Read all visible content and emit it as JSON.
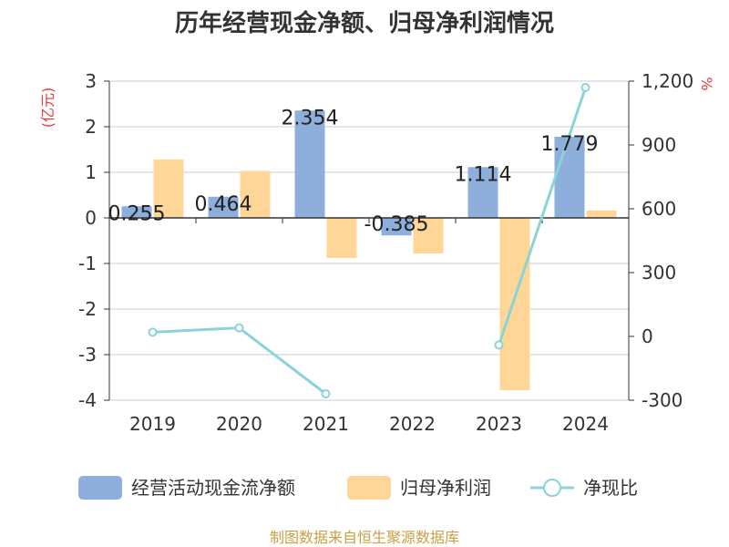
{
  "chart_data": {
    "type": "bar",
    "title": "历年经营现金净额、归母净利润情况",
    "categories": [
      "2019",
      "2020",
      "2021",
      "2022",
      "2023",
      "2024"
    ],
    "left_axis": {
      "label": "(亿元)",
      "ticks": [
        "3",
        "2",
        "1",
        "0",
        "-1",
        "-2",
        "-3",
        "-4"
      ],
      "ylim": [
        -4,
        3
      ]
    },
    "right_axis": {
      "label": "%",
      "ticks": [
        "1,200",
        "900",
        "600",
        "300",
        "0",
        "-300"
      ],
      "ylim": [
        -300,
        1200
      ]
    },
    "series": [
      {
        "name": "经营活动现金流净额",
        "type": "bar",
        "axis": "left",
        "color": "#8eaedc",
        "values": [
          0.255,
          0.464,
          2.354,
          -0.385,
          1.114,
          1.779
        ],
        "labels": [
          "0.255",
          "0.464",
          "2.354",
          "-0.385",
          "1.114",
          "1.779"
        ]
      },
      {
        "name": "归母净利润",
        "type": "bar",
        "axis": "left",
        "color": "#fdd698",
        "values": [
          1.28,
          1.03,
          -0.88,
          -0.78,
          -3.78,
          0.16
        ]
      },
      {
        "name": "净现比",
        "type": "line",
        "axis": "right",
        "color": "#8ad3d6",
        "values": [
          20,
          40,
          -270,
          null,
          -40,
          1170
        ]
      }
    ],
    "grid": true,
    "legend": "bottom"
  },
  "source": "制图数据来自恒生聚源数据库"
}
